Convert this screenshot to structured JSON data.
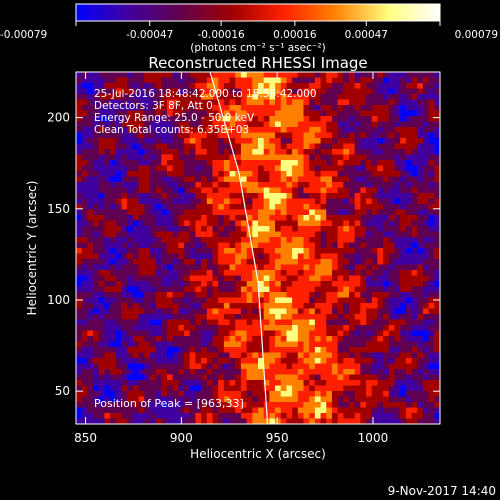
{
  "chart_data": {
    "type": "heatmap",
    "title": "Reconstructed RHESSI Image",
    "xlabel": "Heliocentric X (arcsec)",
    "ylabel": "Heliocentric Y (arcsec)",
    "xlim": [
      845,
      1035
    ],
    "ylim": [
      32,
      225
    ],
    "x_ticks": [
      850,
      900,
      950,
      1000
    ],
    "y_ticks": [
      50,
      100,
      150,
      200
    ],
    "colorbar": {
      "range": [
        -0.00079,
        0.00079
      ],
      "tick_values": [
        -0.00079,
        -0.00047,
        -0.00016,
        0.00016,
        0.00047,
        0.00079
      ],
      "tick_labels": [
        "-0.00079",
        "-0.00047",
        "-0.00016",
        "0.00016",
        "0.00047",
        "0.00079"
      ],
      "unit_label": "(photons cm⁻² s⁻¹ asec⁻²)",
      "colors": [
        "#0000ff",
        "#4000a0",
        "#600050",
        "#a00000",
        "#ff2000",
        "#ff8000",
        "#ffff80",
        "#ffffff"
      ]
    },
    "annotations": [
      "25-Jul-2016 18:48:42.000 to 18:58:42.000",
      "Detectors: 3F 8F, Att 0",
      "Energy Range: 25.0 - 50.0 keV",
      "Clean     Total counts: 6.35E+03"
    ],
    "peak_label": "Position of Peak = [963,33]",
    "peak_position": [
      963,
      33
    ],
    "limb_curve": [
      [
        915,
        225
      ],
      [
        930,
        170
      ],
      [
        940,
        110
      ],
      [
        945,
        32
      ]
    ]
  },
  "footer": {
    "timestamp": "9-Nov-2017 14:40"
  }
}
